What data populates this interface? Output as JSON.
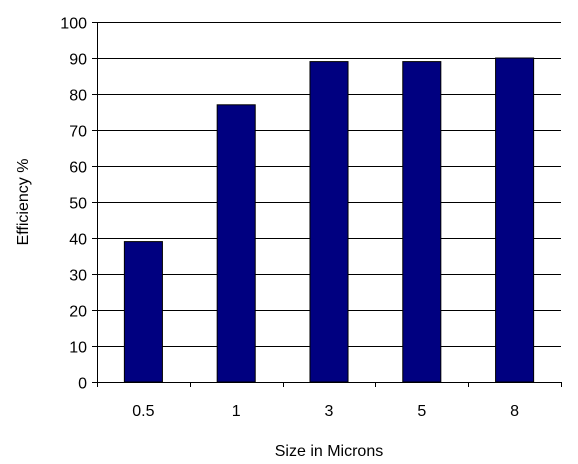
{
  "chart_data": {
    "type": "bar",
    "categories": [
      "0.5",
      "1",
      "3",
      "5",
      "8"
    ],
    "values": [
      39,
      77,
      89,
      89,
      90
    ],
    "xlabel": "Size in Microns",
    "ylabel": "Efficiency %",
    "ylim": [
      0,
      100
    ],
    "yticks": [
      0,
      10,
      20,
      30,
      40,
      50,
      60,
      70,
      80,
      90,
      100
    ],
    "grid": true,
    "legend": "none",
    "colors": {
      "bar_fill": "#000080",
      "bar_stroke": "#000000",
      "grid": "#000000",
      "axis": "#000000"
    }
  }
}
